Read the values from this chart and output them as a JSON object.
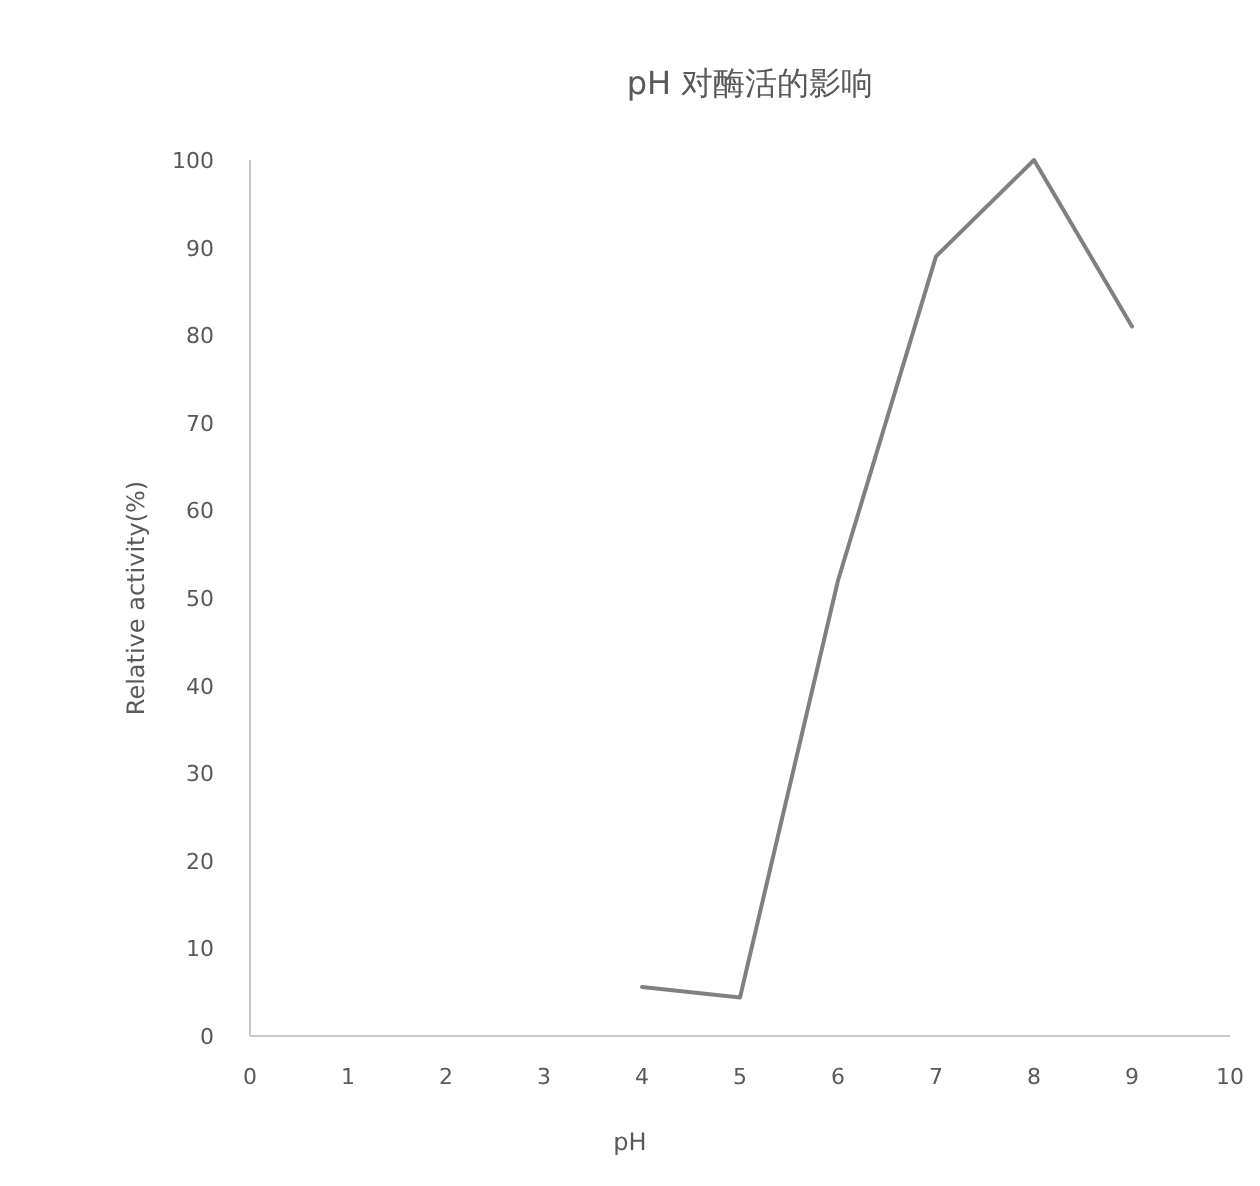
{
  "chart_data": {
    "type": "line",
    "title": "pH 对酶活的影响",
    "xlabel": "pH",
    "ylabel": "Relative activity(%)",
    "x": [
      4,
      5,
      6,
      7,
      8,
      9
    ],
    "series": [
      {
        "color": "#808080",
        "values": [
          5.6,
          4.4,
          52,
          89,
          100,
          81
        ]
      }
    ],
    "xlim": [
      0,
      10
    ],
    "xticks": [
      0,
      1,
      2,
      3,
      4,
      5,
      6,
      7,
      8,
      9,
      10
    ],
    "ylim": [
      0,
      100
    ],
    "yticks": [
      0,
      10,
      20,
      30,
      40,
      50,
      60,
      70,
      80,
      90,
      100
    ],
    "grid": false,
    "marker": "none",
    "line_style": "solid"
  }
}
